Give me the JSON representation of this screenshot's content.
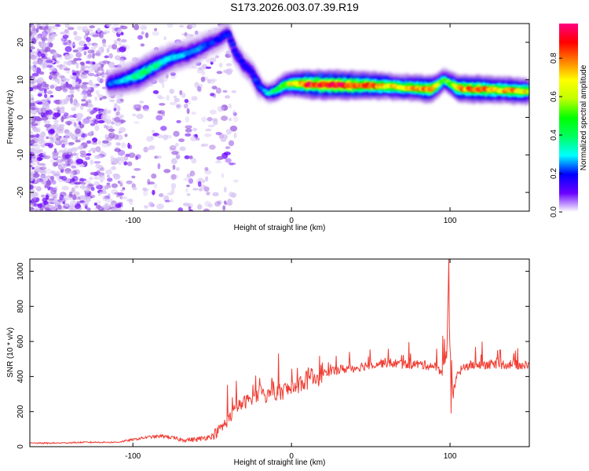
{
  "title": "S173.2026.003.07.39.R19",
  "chart_data": [
    {
      "type": "heatmap",
      "name": "spectrogram",
      "xlabel": "Height of straight line (km)",
      "ylabel": "Frequency (Hz)",
      "xlim": [
        -165,
        150
      ],
      "ylim": [
        -25,
        25
      ],
      "xticks": [
        -100,
        0,
        100
      ],
      "yticks": [
        -20,
        -10,
        0,
        10,
        20
      ],
      "colorbar": {
        "label": "Normalized spectral amplitude",
        "range": [
          0,
          0.98
        ],
        "ticks": [
          0.0,
          0.2,
          0.4,
          0.6,
          0.8
        ],
        "colormap": [
          "#ffffff",
          "#dcc8f5",
          "#9a5ce0",
          "#6a00ff",
          "#0000ff",
          "#00a0ff",
          "#00ffff",
          "#00ff60",
          "#00ff00",
          "#c0ff00",
          "#ffff00",
          "#ff8000",
          "#ff0000",
          "#ff0080"
        ]
      },
      "ridge": {
        "x": [
          -115,
          -105,
          -95,
          -85,
          -75,
          -65,
          -55,
          -45,
          -40,
          -35,
          -30,
          -25,
          -20,
          -15,
          -10,
          -5,
          0,
          10,
          20,
          30,
          40,
          50,
          60,
          70,
          80,
          88,
          92,
          96,
          100,
          105,
          110,
          120,
          130,
          140,
          150
        ],
        "freq": [
          9,
          10,
          11.5,
          14,
          16,
          17,
          19,
          21,
          22.5,
          17,
          14,
          12,
          8,
          6.5,
          7,
          8.5,
          9,
          8.8,
          8.7,
          8.6,
          8.5,
          8.5,
          8.3,
          8,
          7.8,
          7.5,
          8.5,
          10,
          9,
          7.8,
          7.6,
          7.5,
          7.3,
          7.1,
          7
        ],
        "amplitude": [
          0.35,
          0.45,
          0.55,
          0.5,
          0.45,
          0.4,
          0.35,
          0.3,
          0.3,
          0.3,
          0.3,
          0.3,
          0.35,
          0.45,
          0.55,
          0.65,
          0.75,
          0.9,
          0.95,
          0.95,
          0.9,
          0.85,
          0.8,
          0.75,
          0.8,
          0.85,
          0.7,
          0.6,
          0.65,
          0.8,
          0.85,
          0.85,
          0.8,
          0.8,
          0.75
        ]
      }
    },
    {
      "type": "line",
      "name": "snr",
      "xlabel": "Height of straight line (km)",
      "ylabel": "SNR (10 * v/v)",
      "xlim": [
        -165,
        150
      ],
      "ylim": [
        0,
        1070
      ],
      "xticks": [
        -100,
        0,
        100
      ],
      "yticks": [
        0,
        200,
        400,
        600,
        800,
        1000
      ],
      "color": "#f03c32",
      "series": [
        {
          "name": "SNR",
          "x": [
            -165,
            -150,
            -130,
            -110,
            -100,
            -90,
            -80,
            -70,
            -60,
            -50,
            -45,
            -40,
            -35,
            -30,
            -25,
            -20,
            -15,
            -10,
            -5,
            0,
            5,
            10,
            15,
            20,
            25,
            30,
            40,
            50,
            60,
            70,
            80,
            90,
            95,
            98,
            99,
            100,
            102,
            105,
            110,
            120,
            130,
            140,
            150
          ],
          "y": [
            20,
            20,
            25,
            25,
            40,
            55,
            60,
            40,
            40,
            60,
            100,
            150,
            220,
            250,
            280,
            300,
            290,
            300,
            320,
            330,
            360,
            380,
            400,
            420,
            430,
            440,
            450,
            470,
            480,
            470,
            470,
            460,
            430,
            500,
            950,
            600,
            300,
            420,
            460,
            470,
            470,
            470,
            460
          ]
        }
      ]
    }
  ]
}
